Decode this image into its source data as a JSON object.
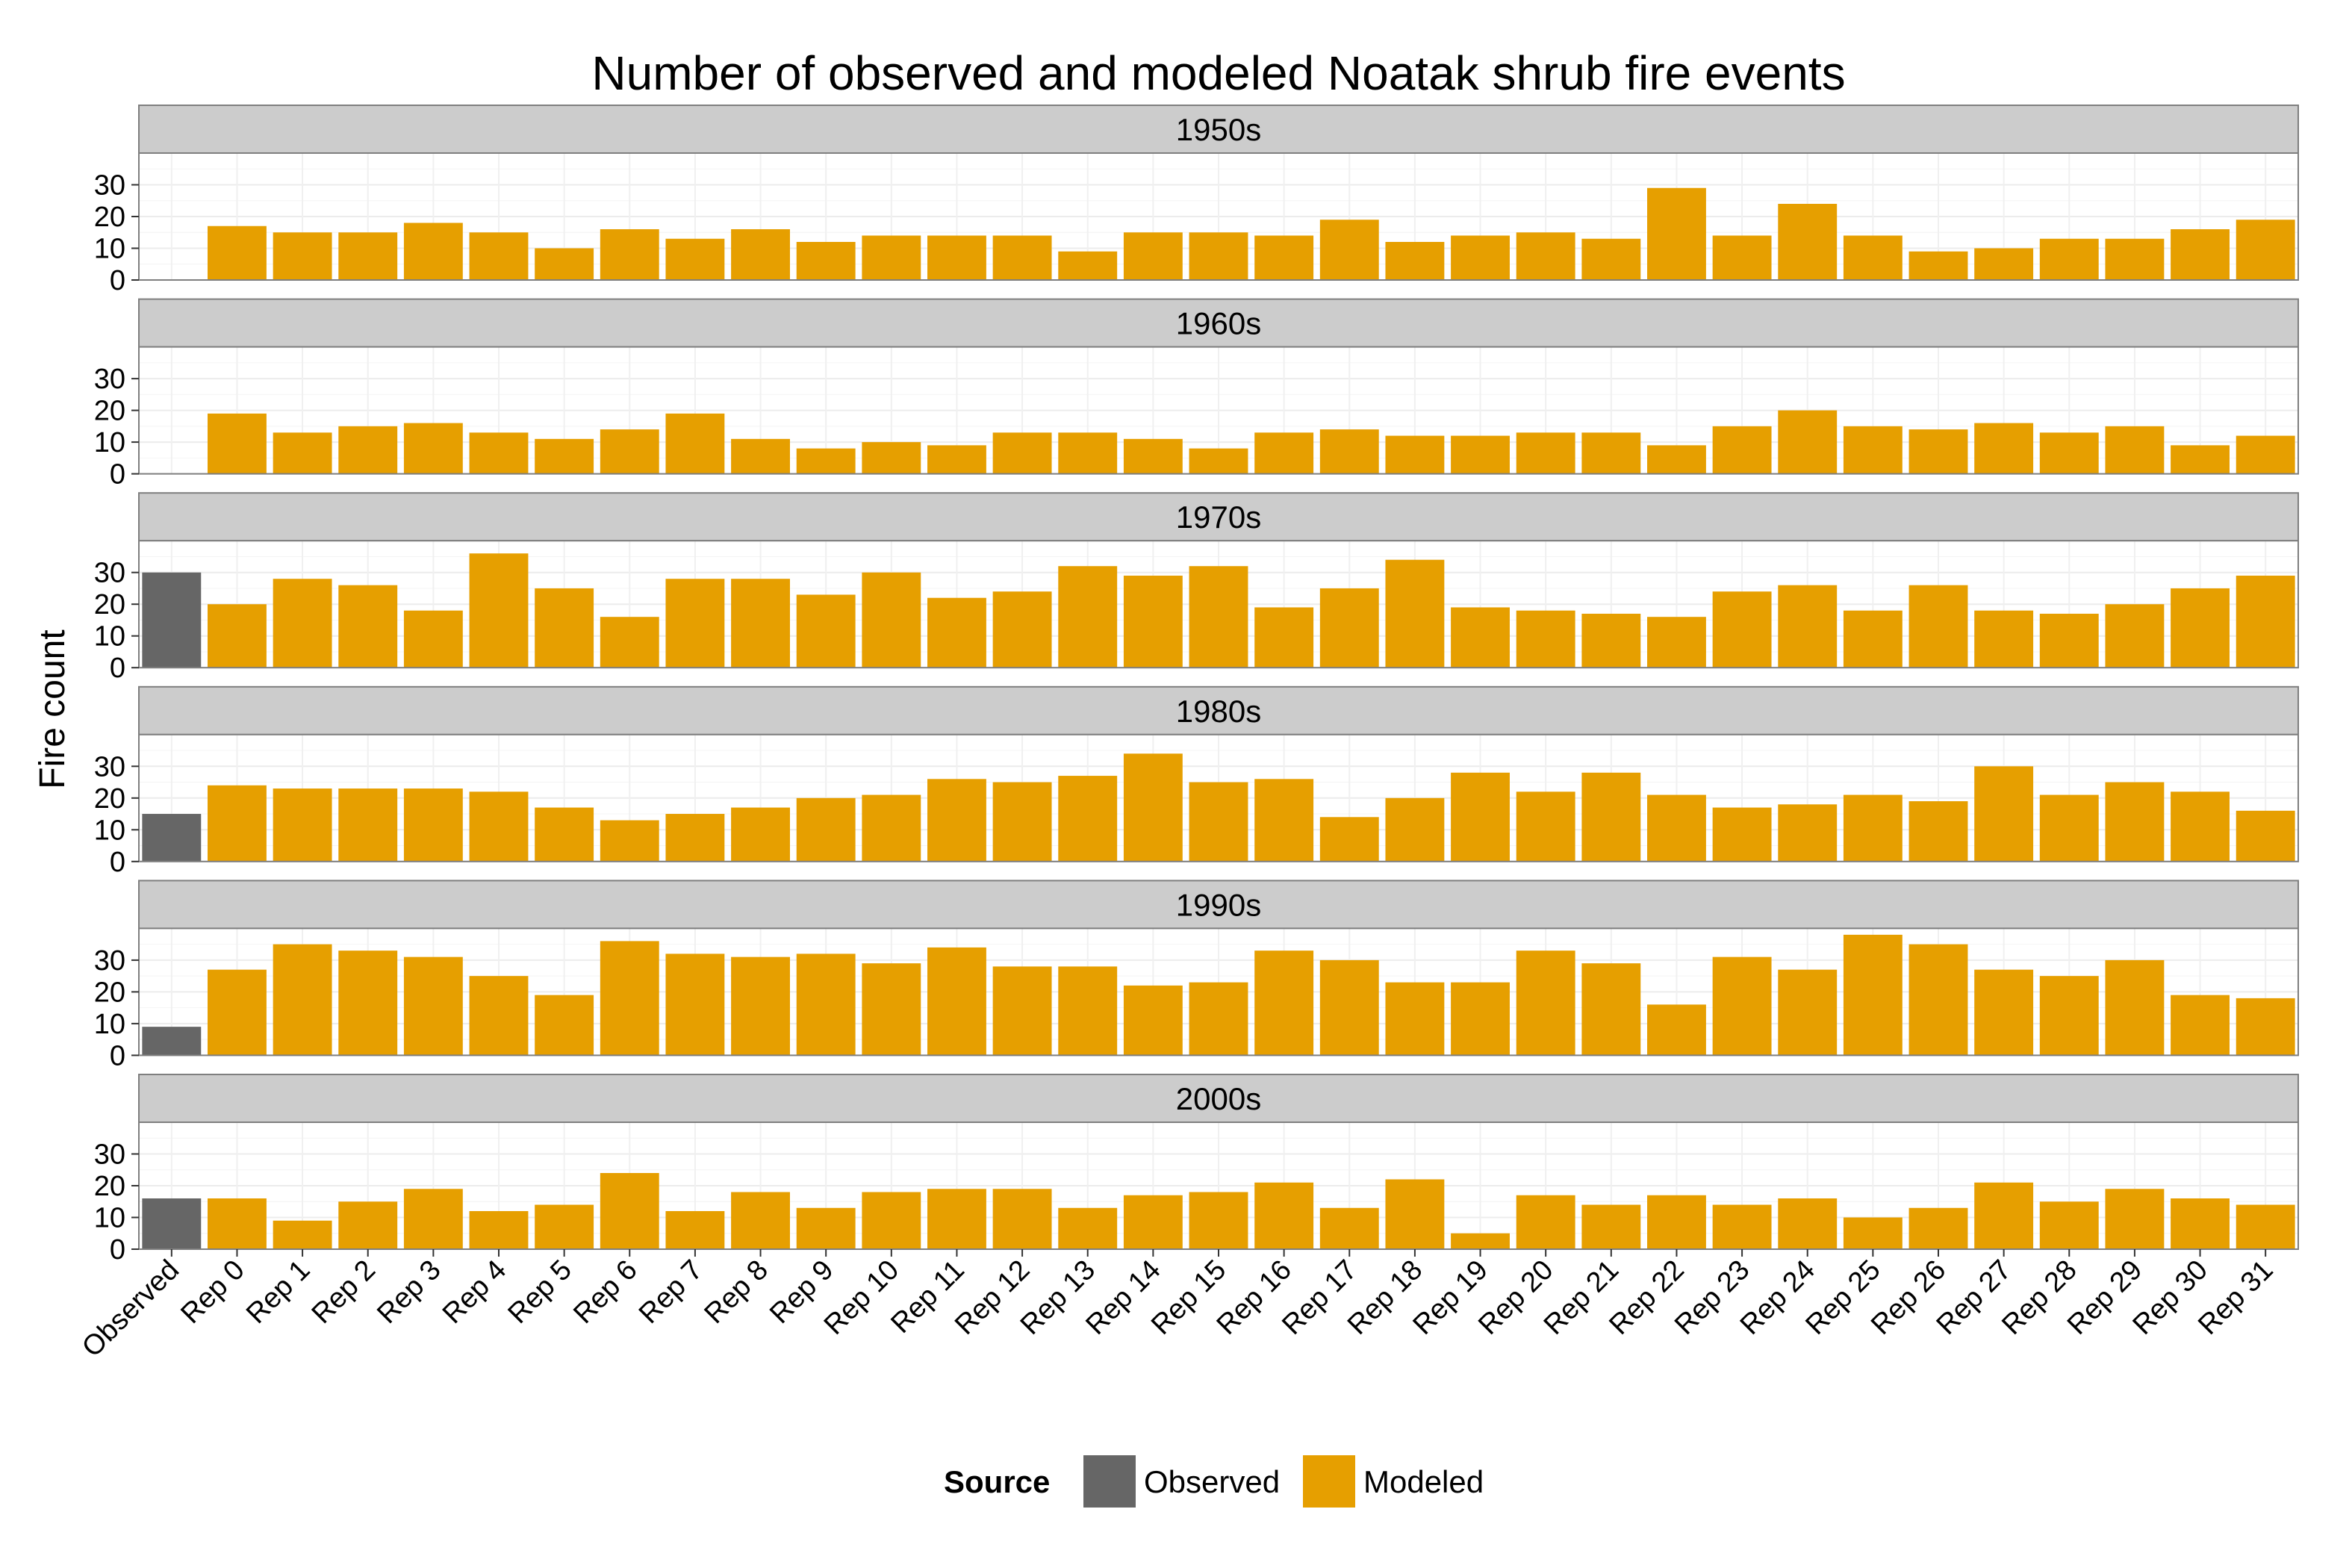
{
  "chart_data": {
    "type": "bar",
    "title": "Number of observed and modeled Noatak shrub fire events",
    "xlabel": "",
    "ylabel": "Fire count",
    "ylim": [
      0,
      40
    ],
    "yticks": [
      0,
      10,
      20,
      30
    ],
    "grid": true,
    "categories": [
      "Observed",
      "Rep 0",
      "Rep 1",
      "Rep 2",
      "Rep 3",
      "Rep 4",
      "Rep 5",
      "Rep 6",
      "Rep 7",
      "Rep 8",
      "Rep 9",
      "Rep 10",
      "Rep 11",
      "Rep 12",
      "Rep 13",
      "Rep 14",
      "Rep 15",
      "Rep 16",
      "Rep 17",
      "Rep 18",
      "Rep 19",
      "Rep 20",
      "Rep 21",
      "Rep 22",
      "Rep 23",
      "Rep 24",
      "Rep 25",
      "Rep 26",
      "Rep 27",
      "Rep 28",
      "Rep 29",
      "Rep 30",
      "Rep 31"
    ],
    "legend": {
      "title": "Source",
      "placement": "bottom",
      "entries": [
        {
          "label": "Observed",
          "color": "#666666"
        },
        {
          "label": "Modeled",
          "color": "#E69F00"
        }
      ]
    },
    "panels": [
      {
        "label": "1950s",
        "values": [
          0,
          17,
          15,
          15,
          18,
          15,
          10,
          16,
          13,
          16,
          12,
          14,
          14,
          14,
          9,
          15,
          15,
          14,
          19,
          12,
          14,
          15,
          13,
          29,
          14,
          24,
          14,
          9,
          10,
          13,
          13,
          16,
          19
        ]
      },
      {
        "label": "1960s",
        "values": [
          0,
          19,
          13,
          15,
          16,
          13,
          11,
          14,
          19,
          11,
          8,
          10,
          9,
          13,
          13,
          11,
          8,
          13,
          14,
          12,
          12,
          13,
          13,
          9,
          15,
          20,
          15,
          14,
          16,
          13,
          15,
          9,
          12
        ]
      },
      {
        "label": "1970s",
        "values": [
          30,
          20,
          28,
          26,
          18,
          36,
          25,
          16,
          28,
          28,
          23,
          30,
          22,
          24,
          32,
          29,
          32,
          19,
          25,
          34,
          19,
          18,
          17,
          16,
          24,
          26,
          18,
          26,
          18,
          17,
          20,
          25,
          29
        ]
      },
      {
        "label": "1980s",
        "values": [
          15,
          24,
          23,
          23,
          23,
          22,
          17,
          13,
          15,
          17,
          20,
          21,
          26,
          25,
          27,
          34,
          25,
          26,
          14,
          20,
          28,
          22,
          28,
          21,
          17,
          18,
          21,
          19,
          30,
          21,
          25,
          22,
          16
        ]
      },
      {
        "label": "1990s",
        "values": [
          9,
          27,
          35,
          33,
          31,
          25,
          19,
          36,
          32,
          31,
          32,
          29,
          34,
          28,
          28,
          22,
          23,
          33,
          30,
          23,
          23,
          33,
          29,
          16,
          31,
          27,
          38,
          35,
          27,
          25,
          30,
          19,
          18
        ]
      },
      {
        "label": "2000s",
        "values": [
          16,
          16,
          9,
          15,
          19,
          12,
          14,
          24,
          12,
          18,
          13,
          18,
          19,
          19,
          13,
          17,
          18,
          21,
          13,
          22,
          5,
          17,
          14,
          17,
          14,
          16,
          10,
          13,
          21,
          15,
          19,
          16,
          14
        ]
      }
    ]
  }
}
